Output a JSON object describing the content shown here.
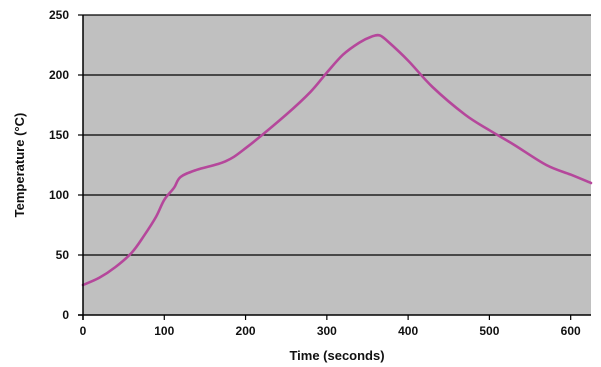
{
  "chart_data": {
    "type": "line",
    "title": "",
    "xlabel": "Time (seconds)",
    "ylabel": "Temperature (°C)",
    "xlim": [
      0,
      625
    ],
    "ylim": [
      0,
      250
    ],
    "xticks": [
      0,
      100,
      200,
      300,
      400,
      500,
      600
    ],
    "yticks": [
      0,
      50,
      100,
      150,
      200,
      250
    ],
    "grid": "horizontal",
    "legend": "none",
    "colors": {
      "plot_background": "#c0c0c0",
      "line": "#b5479b",
      "gridline": "#000000"
    },
    "series": [
      {
        "x": [
          0,
          20,
          40,
          60,
          75,
          90,
          100,
          112,
          120,
          140,
          175,
          200,
          250,
          280,
          300,
          320,
          340,
          355,
          365,
          375,
          400,
          430,
          470,
          500,
          530,
          570,
          600,
          625
        ],
        "y": [
          25,
          31,
          40,
          52,
          66,
          82,
          96,
          106,
          115,
          121,
          128,
          139,
          167,
          186,
          202,
          217,
          227,
          232,
          233,
          228,
          212,
          190,
          167,
          154,
          142,
          125,
          117,
          110
        ]
      }
    ]
  }
}
